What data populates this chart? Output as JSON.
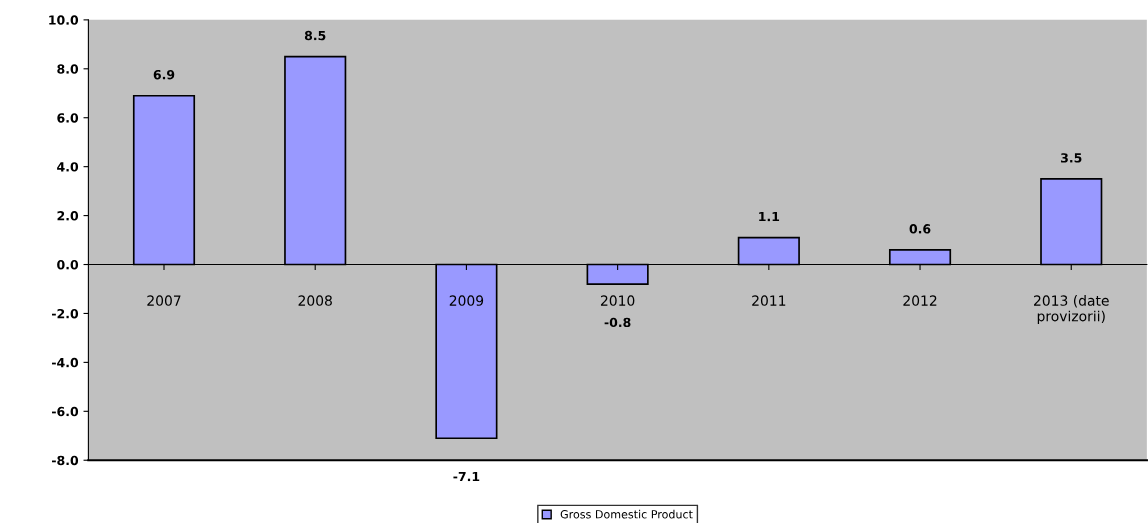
{
  "chart_data": {
    "type": "bar",
    "categories": [
      "2007",
      "2008",
      "2009",
      "2010",
      "2011",
      "2012",
      "2013 (date\nprovizorii)"
    ],
    "series": [
      {
        "name": "Gross Domestic Product",
        "color": "#9999ff",
        "values": [
          6.9,
          8.5,
          -7.1,
          -0.8,
          1.1,
          0.6,
          3.5
        ]
      }
    ],
    "ylim": [
      -8,
      10
    ],
    "yticks": [
      {
        "value": -8,
        "label": "-8.0"
      },
      {
        "value": -6,
        "label": "-6.0"
      },
      {
        "value": -4,
        "label": "-4.0"
      },
      {
        "value": -2,
        "label": "-2.0"
      },
      {
        "value": 0,
        "label": "0.0"
      },
      {
        "value": 2,
        "label": "2.0"
      },
      {
        "value": 4,
        "label": "4.0"
      },
      {
        "value": 6,
        "label": "6.0"
      },
      {
        "value": 8,
        "label": "8.0"
      },
      {
        "value": 10,
        "label": "10.0"
      }
    ],
    "data_labels": true,
    "grid": false,
    "legend": "bottom"
  }
}
